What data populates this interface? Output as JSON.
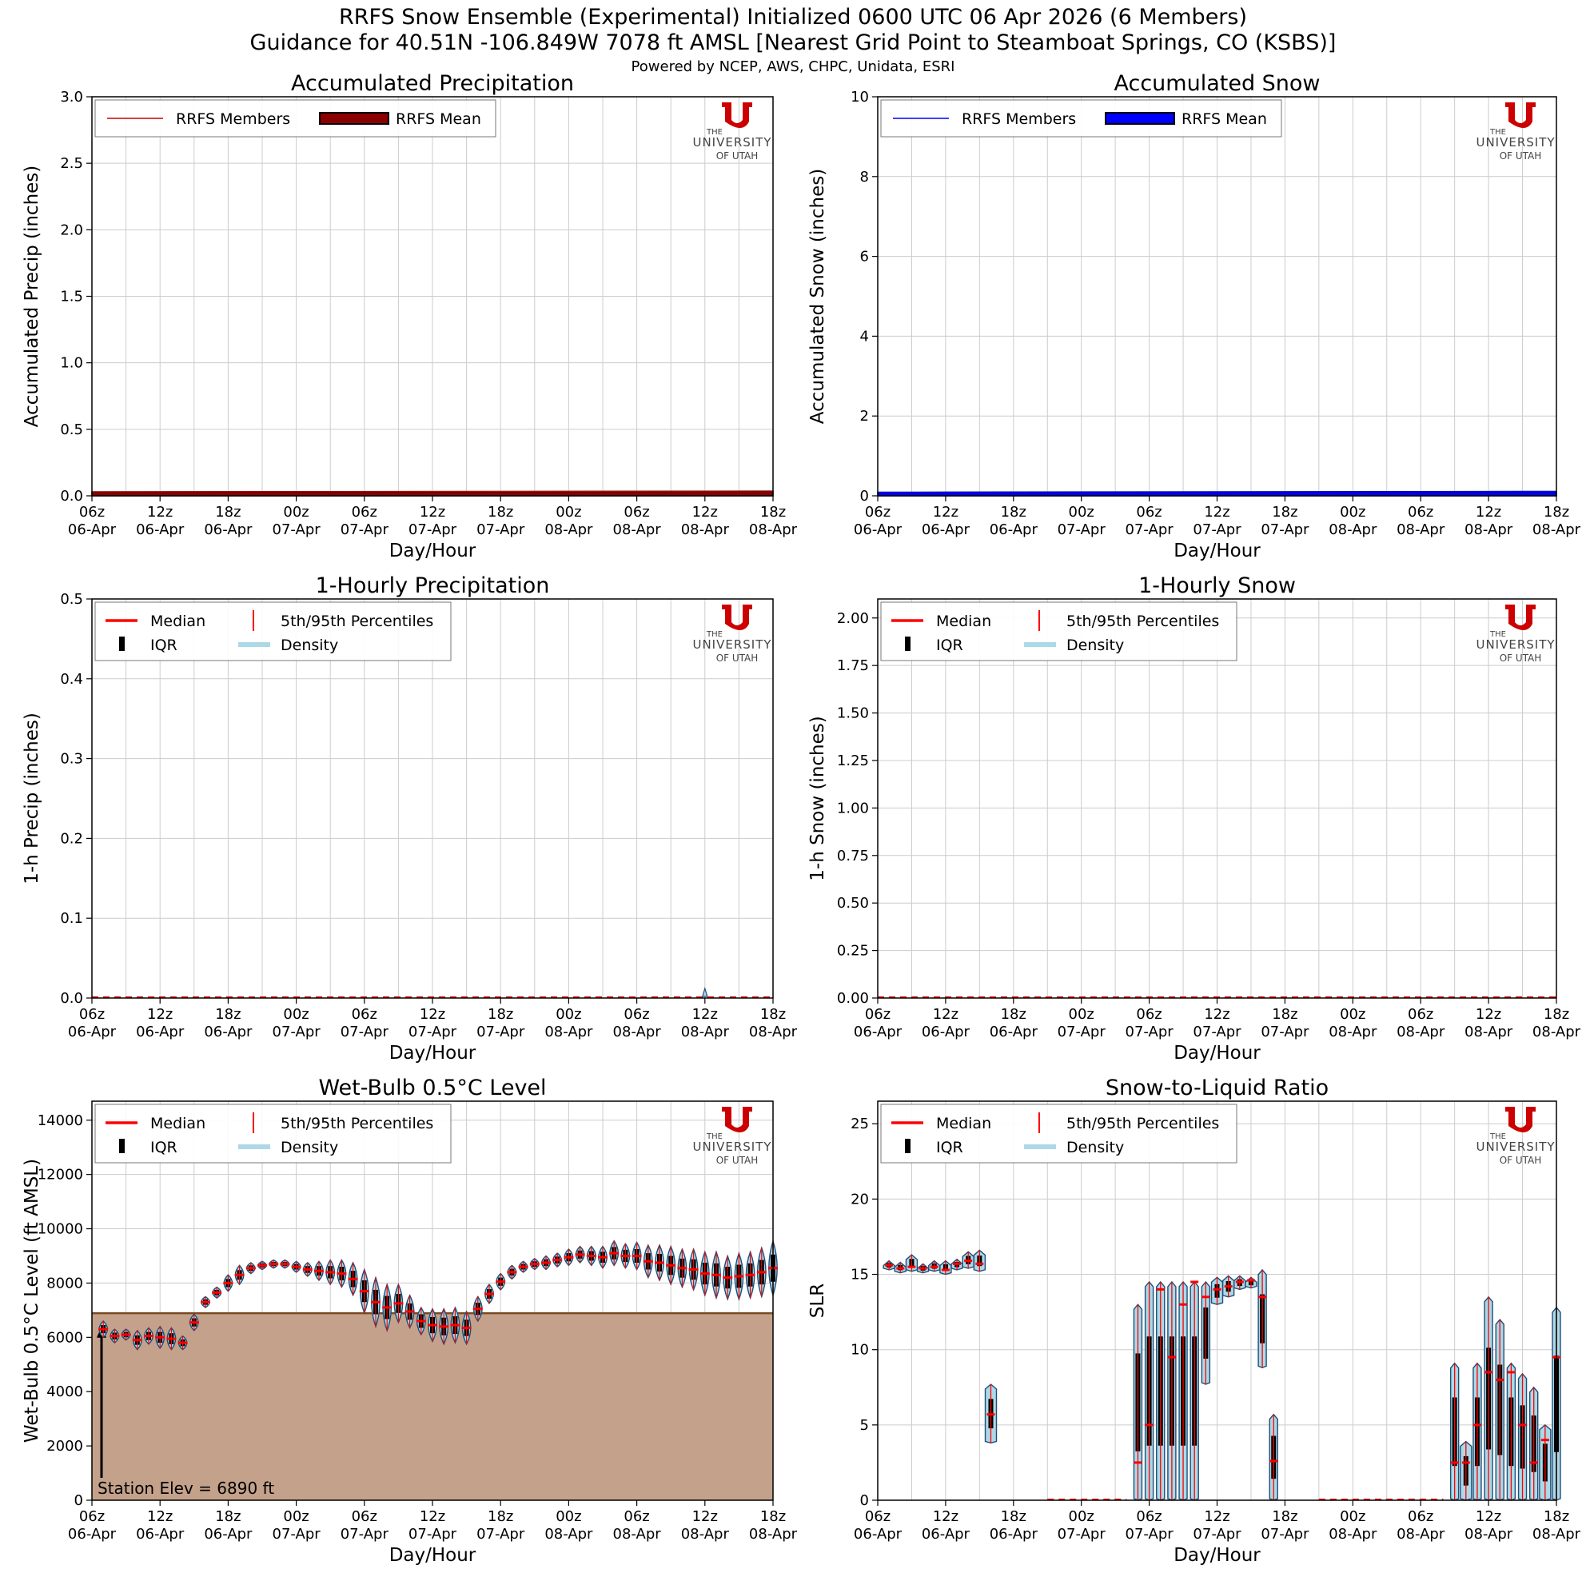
{
  "header": {
    "title_line1": "RRFS Snow Ensemble (Experimental) Initialized 0600 UTC 06 Apr 2026 (6 Members)",
    "title_line2": "Guidance for 40.51N -106.849W 7078 ft AMSL [Nearest Grid Point to Steamboat Springs, CO (KSBS)]",
    "credits": "Powered by NCEP, AWS, CHPC, Unidata, ESRI"
  },
  "logo": {
    "line1": "THE",
    "line2": "UNIVERSITY",
    "line3": "OF UTAH",
    "color": "#cc0000"
  },
  "legend_common": {
    "median": "Median",
    "pct": "5th/95th Percentiles",
    "iqr": "IQR",
    "density": "Density"
  },
  "station_note": "Station Elev = 6890 ft",
  "x_ticks": [
    [
      "06z",
      "06-Apr"
    ],
    [
      "12z",
      "06-Apr"
    ],
    [
      "18z",
      "06-Apr"
    ],
    [
      "00z",
      "07-Apr"
    ],
    [
      "06z",
      "07-Apr"
    ],
    [
      "12z",
      "07-Apr"
    ],
    [
      "18z",
      "07-Apr"
    ],
    [
      "00z",
      "08-Apr"
    ],
    [
      "06z",
      "08-Apr"
    ],
    [
      "12z",
      "08-Apr"
    ],
    [
      "18z",
      "08-Apr"
    ]
  ],
  "chart_data": [
    {
      "type": "line",
      "title": "Accumulated Precipitation",
      "xlabel": "Day/Hour",
      "ylabel": "Accumulated Precip (inches)",
      "ylim": [
        0,
        3.0
      ],
      "yticks": [
        "0.0",
        "0.5",
        "1.0",
        "1.5",
        "2.0",
        "2.5",
        "3.0"
      ],
      "grid": true,
      "legend": "upper-left",
      "legend_entries": [
        "RRFS Members",
        "RRFS Mean"
      ],
      "colors": {
        "members": "#cc0000",
        "mean": "#8b0000"
      },
      "hours": [
        0,
        60
      ],
      "mean_start": 0.03,
      "mean_end": 0.035
    },
    {
      "type": "line",
      "title": "Accumulated Snow",
      "xlabel": "Day/Hour",
      "ylabel": "Accumulated Snow (inches)",
      "ylim": [
        0,
        10
      ],
      "yticks": [
        "0",
        "2",
        "4",
        "6",
        "8",
        "10"
      ],
      "grid": true,
      "legend": "upper-left",
      "legend_entries": [
        "RRFS Members",
        "RRFS Mean"
      ],
      "colors": {
        "members": "#0000ff",
        "mean": "#0000ff"
      },
      "hours": [
        0,
        60
      ],
      "mean_start": 0.09,
      "mean_end": 0.11
    },
    {
      "type": "violin",
      "title": "1-Hourly Precipitation",
      "xlabel": "Day/Hour",
      "ylabel": "1-h Precip (inches)",
      "ylim": [
        0,
        0.5
      ],
      "yticks": [
        "0.0",
        "0.1",
        "0.2",
        "0.3",
        "0.4",
        "0.5"
      ],
      "grid": true,
      "legend": "upper-left",
      "baseline_zero": true,
      "spikes": [
        {
          "hour": 54,
          "p95": 0.012
        }
      ]
    },
    {
      "type": "violin",
      "title": "1-Hourly Snow",
      "xlabel": "Day/Hour",
      "ylabel": "1-h Snow (inches)",
      "ylim": [
        0,
        2.1
      ],
      "yticks": [
        "0.00",
        "0.25",
        "0.50",
        "0.75",
        "1.00",
        "1.25",
        "1.50",
        "1.75",
        "2.00"
      ],
      "grid": true,
      "legend": "upper-left",
      "baseline_zero": true,
      "spikes": []
    },
    {
      "type": "violin",
      "title": "Wet-Bulb 0.5°C Level",
      "xlabel": "Day/Hour",
      "ylabel": "Wet-Bulb 0.5°C Level (ft AMSL)",
      "ylim": [
        0,
        14700
      ],
      "yticks": [
        "0",
        "2000",
        "4000",
        "6000",
        "8000",
        "10000",
        "12000",
        "14000"
      ],
      "grid": true,
      "legend": "upper-left",
      "station_elev": 6890,
      "hours": [
        1,
        2,
        3,
        4,
        5,
        6,
        7,
        8,
        9,
        10,
        11,
        12,
        13,
        14,
        15,
        16,
        17,
        18,
        19,
        20,
        21,
        22,
        23,
        24,
        25,
        26,
        27,
        28,
        29,
        30,
        31,
        32,
        33,
        34,
        35,
        36,
        37,
        38,
        39,
        40,
        41,
        42,
        43,
        44,
        45,
        46,
        47,
        48,
        49,
        50,
        51,
        52,
        53,
        54,
        55,
        56,
        57,
        58,
        59,
        60
      ],
      "median": [
        6300,
        6050,
        6100,
        5900,
        6050,
        6000,
        5950,
        5800,
        6550,
        7300,
        7650,
        8000,
        8300,
        8550,
        8650,
        8700,
        8700,
        8600,
        8500,
        8450,
        8400,
        8350,
        8150,
        7700,
        7300,
        7100,
        7250,
        6950,
        6600,
        6450,
        6400,
        6450,
        6350,
        7050,
        7600,
        8050,
        8400,
        8600,
        8700,
        8750,
        8850,
        8950,
        9050,
        9000,
        8950,
        9100,
        9000,
        9000,
        8800,
        8750,
        8650,
        8550,
        8500,
        8350,
        8300,
        8200,
        8250,
        8300,
        8400,
        8550
      ],
      "spread": [
        300,
        250,
        200,
        350,
        300,
        400,
        400,
        250,
        300,
        200,
        200,
        300,
        350,
        200,
        150,
        150,
        150,
        200,
        250,
        350,
        450,
        500,
        600,
        800,
        900,
        850,
        700,
        600,
        500,
        600,
        650,
        650,
        600,
        450,
        350,
        300,
        250,
        200,
        200,
        250,
        250,
        300,
        300,
        350,
        400,
        450,
        450,
        500,
        600,
        650,
        700,
        700,
        750,
        800,
        850,
        800,
        850,
        850,
        900,
        1000
      ]
    },
    {
      "type": "violin",
      "title": "Snow-to-Liquid Ratio",
      "xlabel": "Day/Hour",
      "ylabel": "SLR",
      "ylim": [
        0,
        26.5
      ],
      "yticks": [
        "0",
        "5",
        "10",
        "15",
        "20",
        "25"
      ],
      "grid": true,
      "legend": "upper-left",
      "hours": [
        1,
        2,
        3,
        4,
        5,
        6,
        7,
        8,
        9,
        10,
        11,
        12,
        13,
        23,
        24,
        25,
        26,
        27,
        28,
        29,
        30,
        31,
        32,
        33,
        34,
        35,
        36,
        37,
        51,
        52,
        53,
        54,
        55,
        56,
        57,
        58,
        59,
        60
      ],
      "median": [
        15.6,
        15.4,
        15.5,
        15.4,
        15.5,
        15.3,
        15.7,
        15.9,
        15.7,
        5.7,
        0,
        0,
        0,
        2.5,
        5,
        14,
        9.5,
        13,
        14.5,
        13.5,
        14,
        14.2,
        14.5,
        14.6,
        13.5,
        2.6,
        0,
        0,
        2.5,
        2.5,
        5,
        8.5,
        8,
        8.5,
        5,
        2.5,
        4,
        9.5
      ],
      "low": [
        15.3,
        15.1,
        15.2,
        15.1,
        15.2,
        15.0,
        15.3,
        15.4,
        15.2,
        3.8,
        0,
        0,
        0,
        0,
        0,
        0,
        0,
        0,
        0,
        7.7,
        13,
        13.5,
        14,
        14.1,
        8.8,
        0,
        0,
        0,
        0,
        0,
        0,
        0,
        0,
        0,
        0,
        0,
        0,
        0
      ],
      "high": [
        15.9,
        15.8,
        16.3,
        15.7,
        15.9,
        15.9,
        16.0,
        16.5,
        16.6,
        7.7,
        0,
        0,
        0,
        13.0,
        14.5,
        14.5,
        14.5,
        14.5,
        14.5,
        14.5,
        14.8,
        14.9,
        14.9,
        14.8,
        15.3,
        5.7,
        0,
        0,
        9.1,
        3.9,
        9.1,
        13.5,
        12.0,
        9.1,
        8.4,
        7.5,
        5.0,
        12.8
      ]
    }
  ]
}
